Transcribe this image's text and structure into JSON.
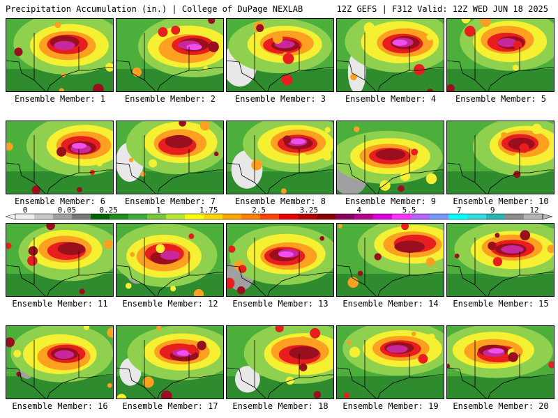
{
  "header": {
    "title": "Precipitation Accumulation (in.) | College of DuPage NEXLAB",
    "run_info": "12Z GEFS | F312 Valid: 12Z WED JUN 18 2025"
  },
  "panels": [
    {
      "label": "Ensemble Member: 1",
      "member": 1
    },
    {
      "label": "Ensemble Member: 2",
      "member": 2
    },
    {
      "label": "Ensemble Member: 3",
      "member": 3
    },
    {
      "label": "Ensemble Member: 4",
      "member": 4
    },
    {
      "label": "Ensemble Member: 5",
      "member": 5
    },
    {
      "label": "Ensemble Member: 6",
      "member": 6
    },
    {
      "label": "Ensemble Member: 7",
      "member": 7
    },
    {
      "label": "Ensemble Member: 8",
      "member": 8
    },
    {
      "label": "Ensemble Member: 9",
      "member": 9
    },
    {
      "label": "Ensemble Member: 10",
      "member": 10
    },
    {
      "label": "Ensemble Member: 11",
      "member": 11
    },
    {
      "label": "Ensemble Member: 12",
      "member": 12
    },
    {
      "label": "Ensemble Member: 13",
      "member": 13
    },
    {
      "label": "Ensemble Member: 14",
      "member": 14
    },
    {
      "label": "Ensemble Member: 15",
      "member": 15
    },
    {
      "label": "Ensemble Member: 16",
      "member": 16
    },
    {
      "label": "Ensemble Member: 17",
      "member": 17
    },
    {
      "label": "Ensemble Member: 18",
      "member": 18
    },
    {
      "label": "Ensemble Member: 19",
      "member": 19
    },
    {
      "label": "Ensemble Member: 20",
      "member": 20
    }
  ],
  "colorbar": {
    "tick_labels": [
      "0",
      "0.05",
      "0.25",
      "1",
      "1.75",
      "2.5",
      "3.25",
      "4",
      "5.5",
      "7",
      "9",
      "12"
    ],
    "colors": [
      "#eeeeee",
      "#c8c8c8",
      "#a0a0a0",
      "#787878",
      "#006400",
      "#1e8c1e",
      "#3caa3c",
      "#78c83c",
      "#b4e632",
      "#ffff00",
      "#ffd700",
      "#ffa500",
      "#ff7f00",
      "#ff4500",
      "#e60000",
      "#b40000",
      "#8b0000",
      "#8b005a",
      "#b4008c",
      "#dc00dc",
      "#ff32ff",
      "#b464ff",
      "#7896ff",
      "#00ffff",
      "#32dcdc",
      "#28b4b4",
      "#8c8c8c",
      "#b4b4b4"
    ]
  },
  "map_colors": {
    "green_dark": "#2e8b2e",
    "green": "#4caf3c",
    "green_light": "#8fd14f",
    "yellow": "#f5f032",
    "orange": "#ffa020",
    "red": "#e81e1e",
    "darkred": "#9a0f1e",
    "magenta": "#c8289b",
    "pink": "#f050f0",
    "cyan": "#32e6e6",
    "gray": "#a0a0a0",
    "white": "#e8e8e8"
  }
}
